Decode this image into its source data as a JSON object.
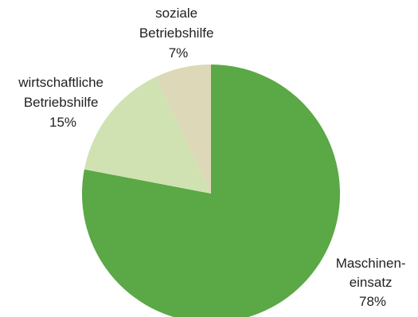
{
  "chart_data": {
    "type": "pie",
    "title": "",
    "slices": [
      {
        "label_lines": [
          "Maschinen-",
          "einsatz"
        ],
        "pct_label": "78%",
        "value": 78,
        "color": "#5aa846"
      },
      {
        "label_lines": [
          "wirtschaftliche",
          "Betriebshilfe"
        ],
        "pct_label": "15%",
        "value": 15,
        "color": "#d0e2b1"
      },
      {
        "label_lines": [
          "soziale",
          "Betriebshilfe"
        ],
        "pct_label": "7%",
        "value": 7,
        "color": "#ddd8b7"
      }
    ],
    "start_angle": "12 o'clock",
    "direction": "clockwise",
    "legend": "none"
  }
}
